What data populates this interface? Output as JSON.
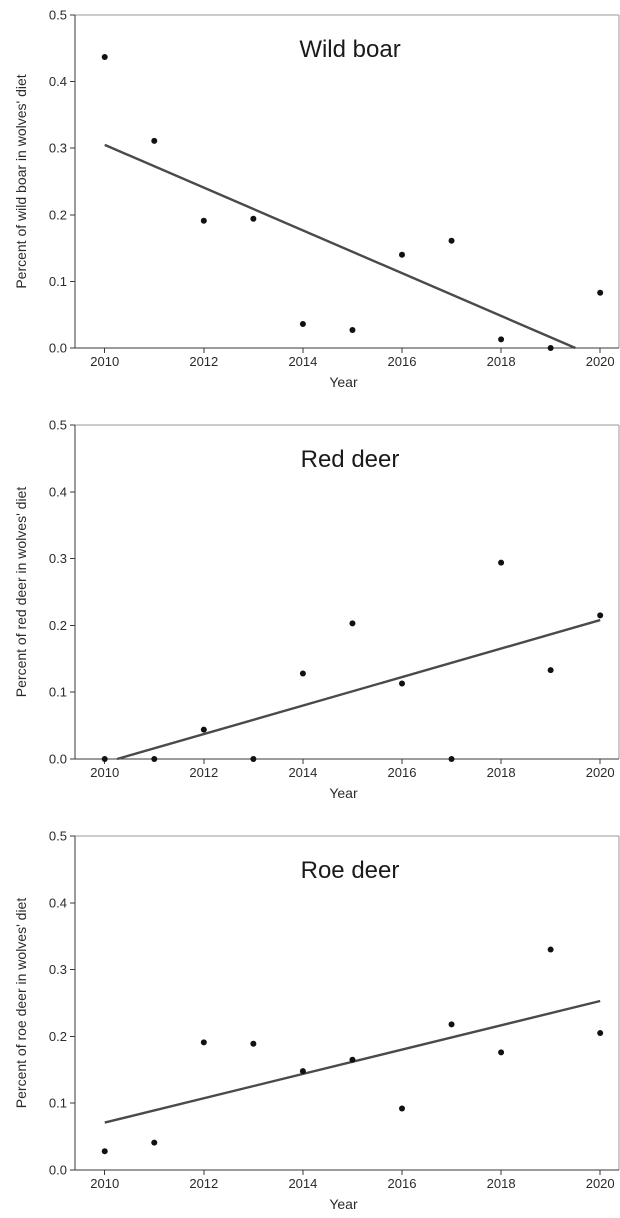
{
  "chart_data": [
    {
      "type": "scatter",
      "title": "Wild boar",
      "xlabel": "Year",
      "ylabel": "Percent of wild boar in wolves' diet",
      "xlim": [
        2009.4,
        2020.4
      ],
      "ylim": [
        0,
        0.5
      ],
      "xticks": [
        2010,
        2012,
        2014,
        2016,
        2018,
        2020
      ],
      "yticks": [
        "0.0",
        "0.1",
        "0.2",
        "0.3",
        "0.4",
        "0.5"
      ],
      "grid": false,
      "points": [
        {
          "x": 2010,
          "y": 0.437
        },
        {
          "x": 2011,
          "y": 0.311
        },
        {
          "x": 2012,
          "y": 0.191
        },
        {
          "x": 2013,
          "y": 0.194
        },
        {
          "x": 2014,
          "y": 0.036
        },
        {
          "x": 2015,
          "y": 0.027
        },
        {
          "x": 2016,
          "y": 0.14
        },
        {
          "x": 2017,
          "y": 0.161
        },
        {
          "x": 2018,
          "y": 0.013
        },
        {
          "x": 2019,
          "y": 0.0
        },
        {
          "x": 2020,
          "y": 0.083
        }
      ],
      "trendline": {
        "x1": 2010,
        "y1": 0.305,
        "x2": 2019.5,
        "y2": 0.0
      }
    },
    {
      "type": "scatter",
      "title": "Red deer",
      "xlabel": "Year",
      "ylabel": "Percent of red deer in wolves' diet",
      "xlim": [
        2009.4,
        2020.4
      ],
      "ylim": [
        0,
        0.5
      ],
      "xticks": [
        2010,
        2012,
        2014,
        2016,
        2018,
        2020
      ],
      "yticks": [
        "0.0",
        "0.1",
        "0.2",
        "0.3",
        "0.4",
        "0.5"
      ],
      "grid": false,
      "points": [
        {
          "x": 2010,
          "y": 0.0
        },
        {
          "x": 2011,
          "y": 0.0
        },
        {
          "x": 2012,
          "y": 0.044
        },
        {
          "x": 2013,
          "y": 0.0
        },
        {
          "x": 2014,
          "y": 0.128
        },
        {
          "x": 2015,
          "y": 0.203
        },
        {
          "x": 2016,
          "y": 0.113
        },
        {
          "x": 2017,
          "y": 0.0
        },
        {
          "x": 2018,
          "y": 0.294
        },
        {
          "x": 2019,
          "y": 0.133
        },
        {
          "x": 2020,
          "y": 0.215
        }
      ],
      "trendline": {
        "x1": 2010.25,
        "y1": 0.0,
        "x2": 2020,
        "y2": 0.208
      }
    },
    {
      "type": "scatter",
      "title": "Roe deer",
      "xlabel": "Year",
      "ylabel": "Percent of roe deer in wolves' diet",
      "xlim": [
        2009.4,
        2020.4
      ],
      "ylim": [
        0,
        0.5
      ],
      "xticks": [
        2010,
        2012,
        2014,
        2016,
        2018,
        2020
      ],
      "yticks": [
        "0.0",
        "0.1",
        "0.2",
        "0.3",
        "0.4",
        "0.5"
      ],
      "grid": false,
      "points": [
        {
          "x": 2010,
          "y": 0.028
        },
        {
          "x": 2011,
          "y": 0.041
        },
        {
          "x": 2012,
          "y": 0.191
        },
        {
          "x": 2013,
          "y": 0.189
        },
        {
          "x": 2014,
          "y": 0.148
        },
        {
          "x": 2015,
          "y": 0.165
        },
        {
          "x": 2016,
          "y": 0.092
        },
        {
          "x": 2017,
          "y": 0.218
        },
        {
          "x": 2018,
          "y": 0.176
        },
        {
          "x": 2019,
          "y": 0.33
        },
        {
          "x": 2020,
          "y": 0.205
        }
      ],
      "trendline": {
        "x1": 2010,
        "y1": 0.071,
        "x2": 2020,
        "y2": 0.253
      }
    }
  ]
}
